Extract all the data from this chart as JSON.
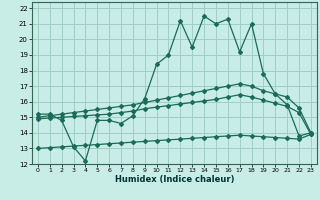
{
  "xlabel": "Humidex (Indice chaleur)",
  "bg_color": "#c8ece6",
  "grid_color": "#a0cfc8",
  "line_color": "#1a6b5a",
  "xlim": [
    -0.5,
    23.5
  ],
  "ylim": [
    12,
    22.4
  ],
  "xticks": [
    0,
    1,
    2,
    3,
    4,
    5,
    6,
    7,
    8,
    9,
    10,
    11,
    12,
    13,
    14,
    15,
    16,
    17,
    18,
    19,
    20,
    21,
    22,
    23
  ],
  "yticks": [
    12,
    13,
    14,
    15,
    16,
    17,
    18,
    19,
    20,
    21,
    22
  ],
  "line1_x": [
    0,
    1,
    2,
    3,
    4,
    5,
    6,
    7,
    8,
    9,
    10,
    11,
    12,
    13,
    14,
    15,
    16,
    17,
    18,
    19,
    20,
    21,
    22,
    23
  ],
  "line1_y": [
    15.2,
    15.2,
    14.8,
    13.1,
    12.2,
    14.8,
    14.8,
    14.6,
    15.1,
    16.2,
    18.4,
    19.0,
    21.2,
    19.5,
    21.5,
    21.0,
    21.3,
    19.2,
    21.0,
    17.8,
    16.5,
    15.8,
    13.8,
    14.0
  ],
  "line2_x": [
    0,
    1,
    2,
    3,
    4,
    5,
    6,
    7,
    8,
    9,
    10,
    11,
    12,
    13,
    14,
    15,
    16,
    17,
    18,
    19,
    20,
    21,
    22,
    23
  ],
  "line2_y": [
    15.0,
    15.1,
    15.2,
    15.3,
    15.4,
    15.5,
    15.6,
    15.7,
    15.8,
    15.95,
    16.1,
    16.25,
    16.4,
    16.55,
    16.7,
    16.85,
    17.0,
    17.15,
    17.0,
    16.7,
    16.5,
    16.3,
    15.6,
    14.0
  ],
  "line3_x": [
    0,
    1,
    2,
    3,
    4,
    5,
    6,
    7,
    8,
    9,
    10,
    11,
    12,
    13,
    14,
    15,
    16,
    17,
    18,
    19,
    20,
    21,
    22,
    23
  ],
  "line3_y": [
    14.9,
    14.95,
    15.0,
    15.05,
    15.1,
    15.15,
    15.2,
    15.3,
    15.4,
    15.55,
    15.65,
    15.75,
    15.85,
    15.95,
    16.05,
    16.15,
    16.3,
    16.45,
    16.3,
    16.1,
    15.9,
    15.7,
    15.3,
    13.9
  ],
  "line4_x": [
    0,
    1,
    2,
    3,
    4,
    5,
    6,
    7,
    8,
    9,
    10,
    11,
    12,
    13,
    14,
    15,
    16,
    17,
    18,
    19,
    20,
    21,
    22,
    23
  ],
  "line4_y": [
    13.0,
    13.05,
    13.1,
    13.15,
    13.2,
    13.25,
    13.3,
    13.35,
    13.4,
    13.45,
    13.5,
    13.55,
    13.6,
    13.65,
    13.7,
    13.75,
    13.8,
    13.85,
    13.8,
    13.75,
    13.7,
    13.65,
    13.6,
    13.9
  ]
}
